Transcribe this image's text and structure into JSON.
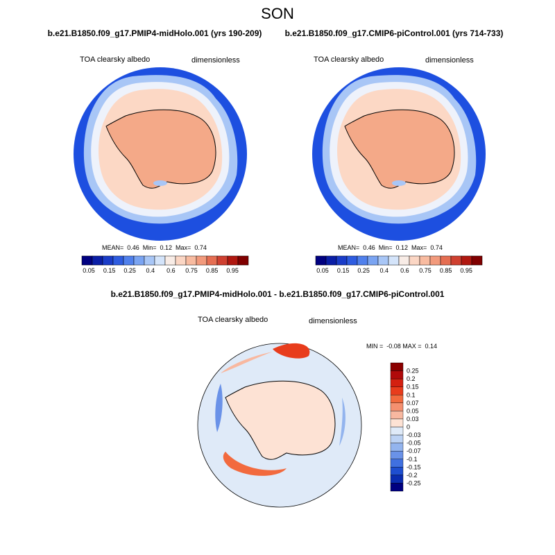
{
  "title": "SON",
  "panels": [
    {
      "title": "b.e21.B1850.f09_g17.PMIP4-midHolo.001 (yrs 190-209)",
      "variable": "TOA clearsky albedo",
      "units": "dimensionless",
      "stats": "MEAN=  0.46  Min=  0.12  Max=  0.74"
    },
    {
      "title": "b.e21.B1850.f09_g17.CMIP6-piControl.001 (yrs 714-733)",
      "variable": "TOA clearsky albedo",
      "units": "dimensionless",
      "stats": "MEAN=  0.46  Min=  0.12  Max=  0.74"
    }
  ],
  "colorbar": {
    "labels": [
      "0.05",
      "0.15",
      "0.25",
      "0.4",
      "0.6",
      "0.75",
      "0.85",
      "0.95"
    ],
    "colors": [
      "#000080",
      "#0a1ea6",
      "#1a3cc8",
      "#2e5ce0",
      "#5080ec",
      "#7aa4f2",
      "#a8c6f6",
      "#d4e4fa",
      "#f8ece6",
      "#fbd6c4",
      "#f8bba0",
      "#f29a7c",
      "#e56e52",
      "#cf4030",
      "#b01810",
      "#800000"
    ]
  },
  "difference": {
    "title": "b.e21.B1850.f09_g17.PMIP4-midHolo.001 - b.e21.B1850.f09_g17.CMIP6-piControl.001",
    "variable": "TOA clearsky albedo",
    "units": "dimensionless",
    "stats": "MIN =  -0.08 MAX =  0.14",
    "colorbar": {
      "labels": [
        "0.25",
        "0.2",
        "0.15",
        "0.1",
        "0.07",
        "0.05",
        "0.03",
        "0",
        "-0.03",
        "-0.05",
        "-0.07",
        "-0.1",
        "-0.15",
        "-0.2",
        "-0.25"
      ],
      "colors": [
        "#8b0000",
        "#b00a0a",
        "#d42010",
        "#e83c1c",
        "#f26a3e",
        "#f59070",
        "#f8b8a0",
        "#fde2d4",
        "#dfeaf8",
        "#bcd2f4",
        "#93b4ee",
        "#6a92e8",
        "#4070e0",
        "#1e4ed0",
        "#0a2cb0",
        "#000080"
      ]
    }
  }
}
